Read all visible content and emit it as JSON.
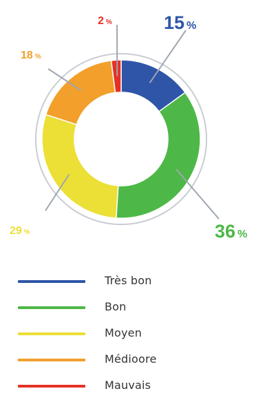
{
  "chart_data": {
    "type": "pie",
    "variant": "donut",
    "title": "",
    "slices": [
      {
        "label": "Très bon",
        "value": 15,
        "display_value": "15",
        "unit": "%",
        "color": "#2f55a8"
      },
      {
        "label": "Bon",
        "value": 36,
        "display_value": "36",
        "unit": "%",
        "color": "#4db847"
      },
      {
        "label": "Moyen",
        "value": 29,
        "display_value": "29",
        "unit": "%",
        "color": "#ecdf36"
      },
      {
        "label": "Médiocre",
        "value": 18,
        "display_value": "18",
        "unit": "%",
        "color": "#f2a02b"
      },
      {
        "label": "Mauvais",
        "value": 2,
        "display_value": "2",
        "unit": "%",
        "color": "#e53124"
      }
    ],
    "legend_placement": "bottom",
    "leader_line_color": "#9ea6b0"
  },
  "legend": {
    "items": [
      {
        "label": "Très bon",
        "color": "#2f55a8"
      },
      {
        "label": "Bon",
        "color": "#4db847"
      },
      {
        "label": "Moyen",
        "color": "#ecdf36"
      },
      {
        "label": "Médioore",
        "color": "#f2a02b"
      },
      {
        "label": "Mauvais",
        "color": "#e53124"
      }
    ]
  }
}
